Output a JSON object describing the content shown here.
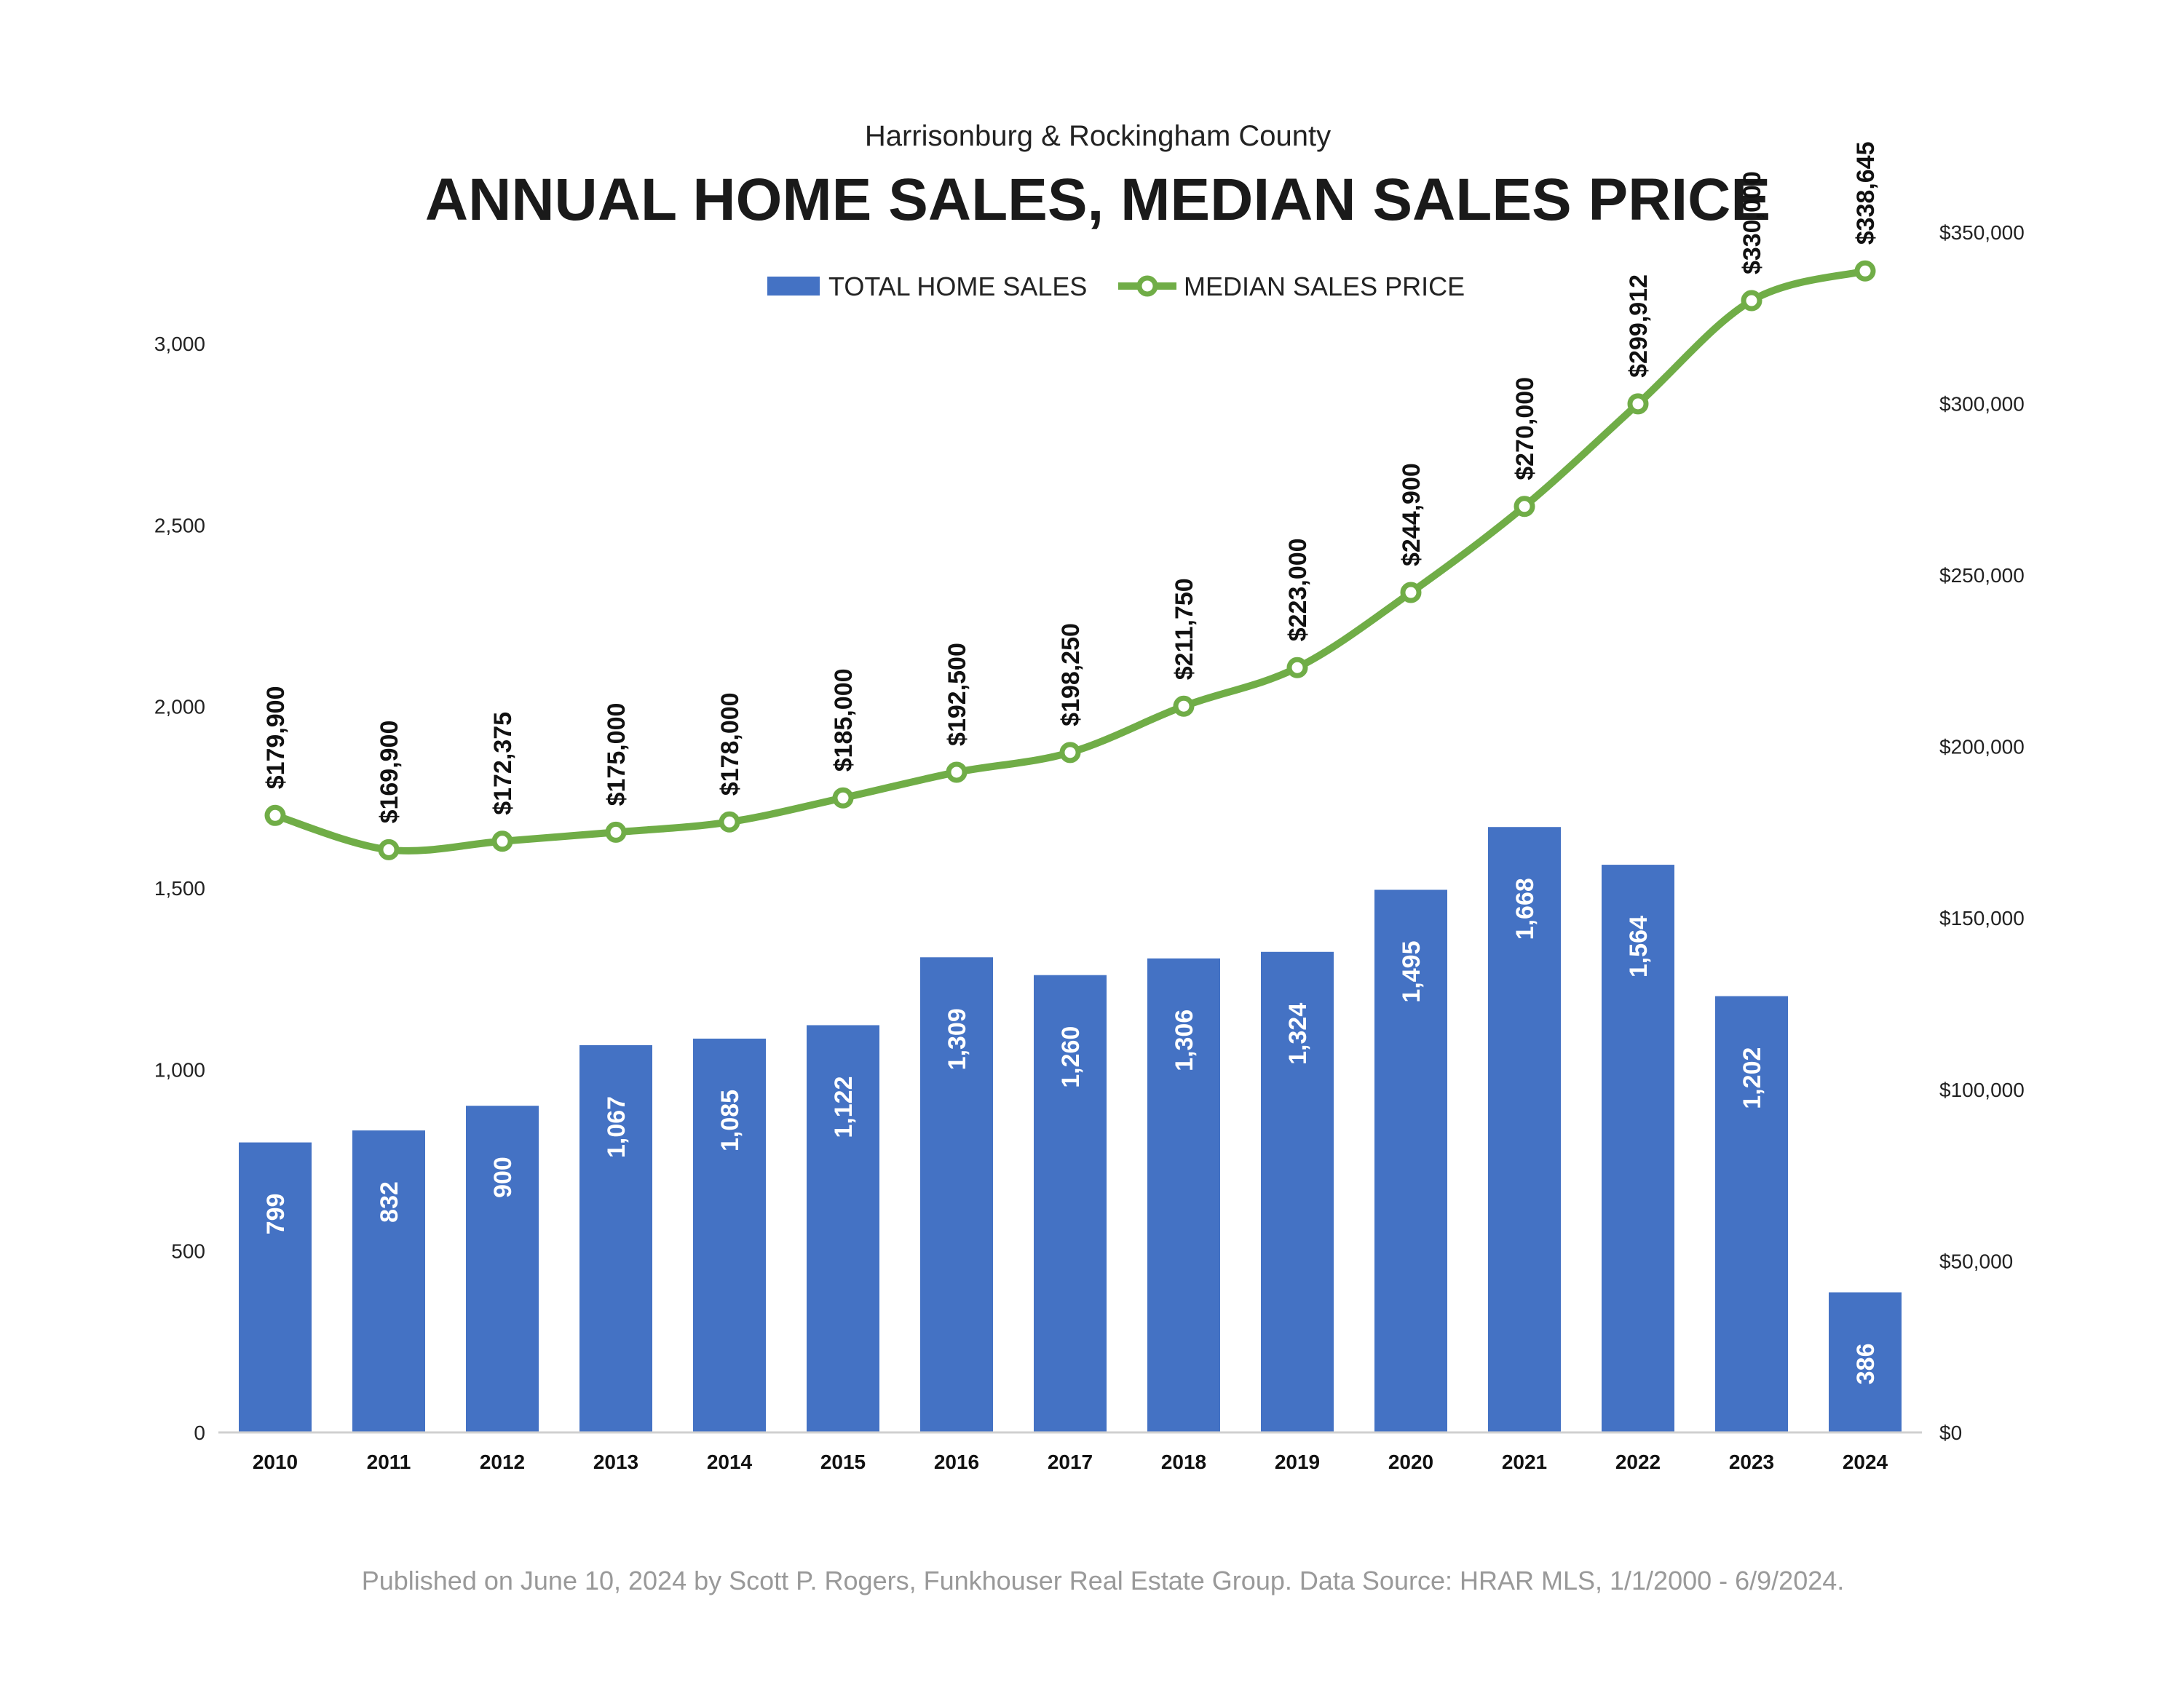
{
  "header": {
    "subtitle": "Harrisonburg & Rockingham County",
    "title": "ANNUAL HOME SALES, MEDIAN SALES PRICE"
  },
  "footer": {
    "text": "Published on June 10, 2024 by Scott P. Rogers, Funkhouser Real Estate Group. Data Source: HRAR MLS, 1/1/2000 - 6/9/2024."
  },
  "colors": {
    "bars": "#4472C4",
    "line": "#70AD47",
    "axis": "#d0d0d0"
  },
  "chart_data": {
    "type": "bar",
    "title": "ANNUAL HOME SALES, MEDIAN SALES PRICE",
    "subtitle": "Harrisonburg & Rockingham County",
    "legend_position": "top-center",
    "grid": false,
    "categories": [
      "2010",
      "2011",
      "2012",
      "2013",
      "2014",
      "2015",
      "2016",
      "2017",
      "2018",
      "2019",
      "2020",
      "2021",
      "2022",
      "2023",
      "2024"
    ],
    "series": [
      {
        "name": "TOTAL HOME SALES",
        "type": "bar",
        "axis": "left",
        "values": [
          799,
          832,
          900,
          1067,
          1085,
          1122,
          1309,
          1260,
          1306,
          1324,
          1495,
          1668,
          1564,
          1202,
          386
        ],
        "labels": [
          "799",
          "832",
          "900",
          "1,067",
          "1,085",
          "1,122",
          "1,309",
          "1,260",
          "1,306",
          "1,324",
          "1,495",
          "1,668",
          "1,564",
          "1,202",
          "386"
        ]
      },
      {
        "name": "MEDIAN SALES PRICE",
        "type": "line",
        "axis": "right",
        "values": [
          179900,
          169900,
          172375,
          175000,
          178000,
          185000,
          192500,
          198250,
          211750,
          223000,
          244900,
          270000,
          299912,
          330000,
          338645
        ],
        "labels": [
          "$179,900",
          "$169,900",
          "$172,375",
          "$175,000",
          "$178,000",
          "$185,000",
          "$192,500",
          "$198,250",
          "$211,750",
          "$223,000",
          "$244,900",
          "$270,000",
          "$299,912",
          "$330,000",
          "$338,645"
        ]
      }
    ],
    "y_left": {
      "min": 0,
      "max": 3000,
      "ticks": [
        0,
        500,
        1000,
        1500,
        2000,
        2500,
        3000
      ],
      "tick_labels": [
        "0",
        "500",
        "1,000",
        "1,500",
        "2,000",
        "2,500",
        "3,000"
      ]
    },
    "y_right": {
      "min": 0,
      "max": 375000,
      "ticks": [
        0,
        50000,
        100000,
        150000,
        200000,
        250000,
        300000,
        350000
      ],
      "tick_labels": [
        "$0",
        "$50,000",
        "$100,000",
        "$150,000",
        "$200,000",
        "$250,000",
        "$300,000",
        "$350,000"
      ]
    }
  }
}
